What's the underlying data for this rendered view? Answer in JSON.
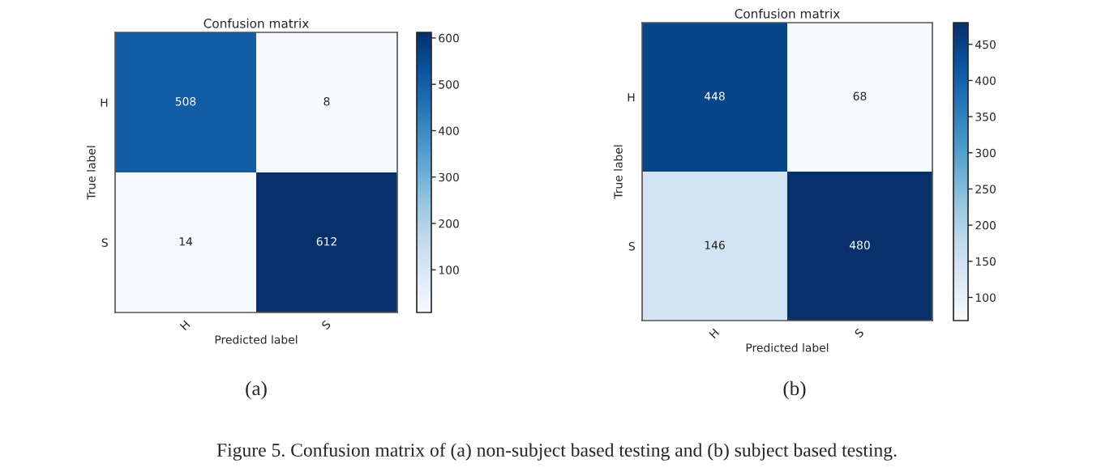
{
  "chart_data": [
    {
      "type": "heatmap",
      "title": "Confusion matrix",
      "xlabel": "Predicted label",
      "ylabel": "True label",
      "categories": [
        "H",
        "S"
      ],
      "y_categories": [
        "H",
        "S"
      ],
      "cells": [
        [
          508,
          8
        ],
        [
          14,
          612
        ]
      ],
      "data_labels": true,
      "clim": [
        8,
        612
      ],
      "cticks": [
        100,
        200,
        300,
        400,
        500,
        600
      ],
      "annotations": [
        "(a)"
      ]
    },
    {
      "type": "heatmap",
      "title": "Confusion matrix",
      "xlabel": "Predicted label",
      "ylabel": "True label",
      "categories": [
        "H",
        "S"
      ],
      "y_categories": [
        "H",
        "S"
      ],
      "cells": [
        [
          448,
          68
        ],
        [
          146,
          480
        ]
      ],
      "data_labels": true,
      "clim": [
        68,
        480
      ],
      "cticks": [
        100,
        150,
        200,
        250,
        300,
        350,
        400,
        450
      ],
      "annotations": [
        "(b)",
        "Figure 5. Confusion matrix of (a) non-subject based testing and (b) subject based testing."
      ]
    }
  ]
}
